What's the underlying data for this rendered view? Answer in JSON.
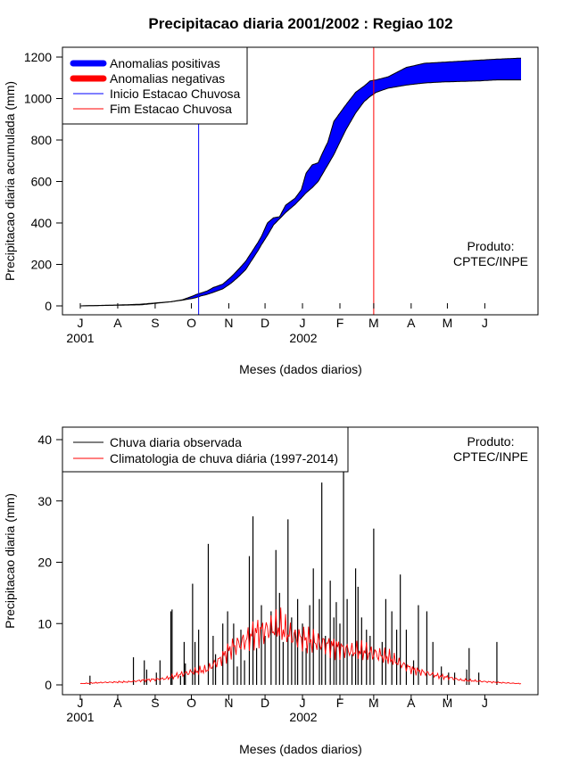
{
  "page": {
    "title": "Precipitacao diaria 2001/2002 : Regiao 102"
  },
  "chart_data": [
    {
      "type": "area",
      "title": "Precipitacao diaria 2001/2002 : Regiao 102",
      "xlabel": "Meses (dados diarios)",
      "ylabel": "Precipitacao diaria acumulada (mm)",
      "ylim": [
        0,
        1200
      ],
      "yticks": [
        0,
        200,
        400,
        600,
        800,
        1000,
        1200
      ],
      "month_ticks": [
        "J",
        "A",
        "S",
        "O",
        "N",
        "D",
        "J",
        "F",
        "M",
        "A",
        "M",
        "J"
      ],
      "year_labels": [
        "2001",
        "2002"
      ],
      "x_unit": "day index starting 1 Jul 2001 (0..365)",
      "xlim": [
        0,
        365
      ],
      "legend": {
        "position": "top-left",
        "entries": [
          "Anomalias positivas",
          "Anomalias negativas",
          "Inicio Estacao Chuvosa",
          "Fim Estacao Chuvosa"
        ]
      },
      "colors": {
        "positive": "#0000ff",
        "negative": "#ff0000",
        "onset": "#0000ff",
        "end": "#ff0000"
      },
      "annotation": [
        "Produto:",
        "CPTEC/INPE"
      ],
      "rainy_season_onset_day": 98,
      "rainy_season_end_day": 243,
      "observed": {
        "x": [
          0,
          30,
          50,
          62,
          75,
          85,
          92,
          96,
          100,
          105,
          110,
          118,
          125,
          130,
          137,
          142,
          147,
          150,
          155,
          160,
          165,
          170,
          178,
          183,
          187,
          192,
          197,
          200,
          205,
          210,
          215,
          220,
          228,
          235,
          240,
          245,
          255,
          270,
          285,
          300,
          330,
          345,
          365
        ],
        "values": [
          0,
          3,
          5,
          12,
          20,
          30,
          45,
          55,
          62,
          72,
          88,
          105,
          140,
          170,
          215,
          260,
          305,
          335,
          400,
          425,
          430,
          485,
          520,
          560,
          640,
          680,
          690,
          730,
          790,
          890,
          930,
          970,
          1030,
          1060,
          1085,
          1090,
          1105,
          1150,
          1170,
          1175,
          1185,
          1190,
          1195
        ]
      },
      "climatology": {
        "x": [
          0,
          30,
          50,
          62,
          75,
          85,
          92,
          96,
          100,
          105,
          110,
          118,
          125,
          130,
          137,
          142,
          147,
          150,
          155,
          160,
          165,
          170,
          178,
          183,
          187,
          192,
          197,
          200,
          205,
          210,
          215,
          220,
          228,
          235,
          240,
          245,
          255,
          270,
          285,
          300,
          330,
          345,
          365
        ],
        "values": [
          0,
          4,
          8,
          14,
          20,
          28,
          35,
          40,
          48,
          55,
          65,
          82,
          110,
          135,
          175,
          220,
          265,
          295,
          340,
          390,
          420,
          450,
          490,
          520,
          545,
          570,
          600,
          630,
          680,
          730,
          790,
          850,
          930,
          985,
          1010,
          1030,
          1050,
          1065,
          1075,
          1080,
          1085,
          1090,
          1090
        ]
      }
    },
    {
      "type": "bar",
      "xlabel": "Meses (dados diarios)",
      "ylabel": "Precipitacao diaria (mm)",
      "ylim": [
        0,
        40
      ],
      "yticks": [
        0,
        10,
        20,
        30,
        40
      ],
      "month_ticks": [
        "J",
        "A",
        "S",
        "O",
        "N",
        "D",
        "J",
        "F",
        "M",
        "A",
        "M",
        "J"
      ],
      "year_labels": [
        "2001",
        "2002"
      ],
      "x_unit": "day index starting 1 Jul 2001 (0..365)",
      "xlim": [
        0,
        365
      ],
      "legend": {
        "position": "top-left",
        "entries": [
          "Chuva diaria observada",
          "Climatologia de chuva diária (1997-2014)"
        ]
      },
      "colors": {
        "observed": "#000000",
        "climatology": "#ff0000"
      },
      "annotation": [
        "Produto:",
        "CPTEC/INPE"
      ],
      "observed_bars": {
        "days": [
          8,
          44,
          53,
          55,
          63,
          66,
          75,
          76,
          83,
          86,
          87,
          93,
          95,
          98,
          106,
          110,
          112,
          118,
          122,
          127,
          130,
          133,
          136,
          140,
          143,
          146,
          150,
          153,
          158,
          162,
          165,
          168,
          172,
          175,
          178,
          180,
          184,
          187,
          190,
          193,
          198,
          200,
          203,
          207,
          210,
          212,
          215,
          218,
          221,
          225,
          228,
          230,
          233,
          237,
          240,
          243,
          250,
          253,
          258,
          262,
          265,
          270,
          276,
          280,
          287,
          292,
          299,
          305,
          310,
          320,
          322,
          330,
          345
        ],
        "values": [
          1.5,
          4.5,
          4,
          2.5,
          2,
          4,
          12,
          12.3,
          1.5,
          7,
          3.5,
          16.5,
          7,
          9,
          23,
          8,
          5,
          10,
          12,
          10,
          3,
          9,
          4,
          21,
          27.5,
          6,
          13,
          8,
          12,
          22,
          15,
          7,
          27,
          11,
          9,
          14,
          10,
          6,
          13,
          19,
          14,
          33,
          8,
          17,
          11,
          13.5,
          10,
          35,
          14,
          5,
          19,
          16,
          11,
          9,
          8,
          25.5,
          7,
          14,
          12,
          9,
          18,
          9,
          4,
          13,
          12,
          7,
          3,
          2,
          2,
          2.5,
          6,
          2,
          7
        ]
      },
      "climatology_series": {
        "x": [
          0,
          20,
          40,
          55,
          70,
          85,
          95,
          105,
          115,
          125,
          135,
          145,
          155,
          165,
          175,
          185,
          195,
          205,
          215,
          225,
          235,
          245,
          255,
          265,
          275,
          285,
          295,
          305,
          315,
          330,
          345,
          365
        ],
        "values": [
          0.2,
          0.4,
          0.5,
          0.8,
          1,
          1.8,
          2.2,
          2.5,
          4,
          6,
          7,
          8.5,
          9,
          9.5,
          8,
          7.5,
          7,
          6.5,
          6,
          5.5,
          5.5,
          5,
          4.5,
          3.5,
          2.5,
          2,
          1.5,
          1.2,
          0.8,
          0.6,
          0.4,
          0.2
        ]
      }
    }
  ]
}
